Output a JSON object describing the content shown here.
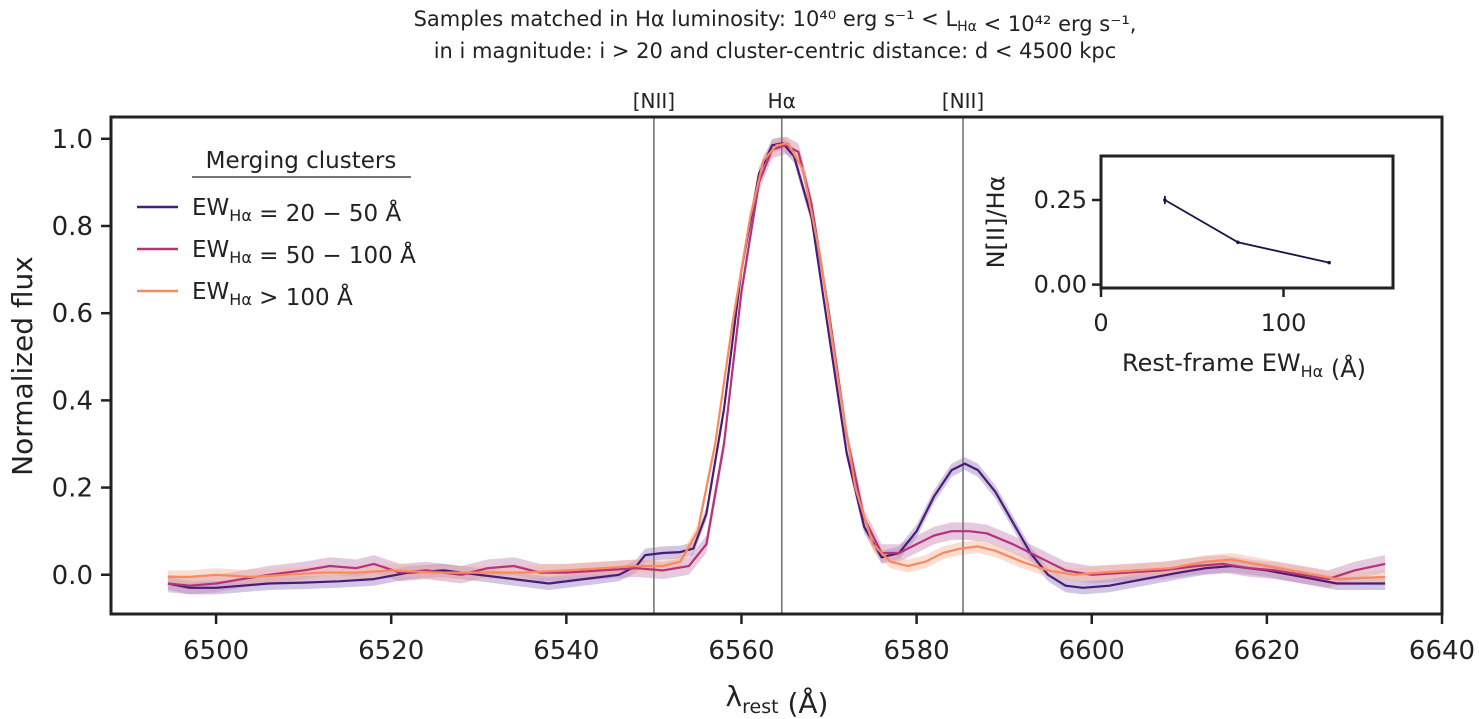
{
  "chart_data": [
    {
      "type": "line",
      "title_line1": "Samples matched in Hα luminosity: 10⁴⁰ erg s⁻¹ < L_Hα < 10⁴² erg s⁻¹,",
      "title_line2": "in i magnitude: i > 20 and cluster-centric distance: d < 4500 kpc",
      "xlabel": "λ_rest (Å)",
      "ylabel": "Normalized flux",
      "xlim": [
        6488,
        6640
      ],
      "ylim": [
        -0.09,
        1.05
      ],
      "xticks": [
        6500,
        6520,
        6540,
        6560,
        6580,
        6600,
        6620,
        6640
      ],
      "yticks": [
        0.0,
        0.2,
        0.4,
        0.6,
        0.8,
        1.0
      ],
      "grid": false,
      "legend_title": "Merging clusters",
      "legend_position": "top-left",
      "line_labels": [
        {
          "label": "[NII]",
          "x": 6550.0
        },
        {
          "label": "Hα",
          "x": 6564.6
        },
        {
          "label": "[NII]",
          "x": 6585.3
        }
      ],
      "series": [
        {
          "name": "EW_Hα = 20 − 50 Å",
          "color": "#4b1b78",
          "band_color": "#9a82c2",
          "x": [
            6494.5,
            6497,
            6500,
            6503,
            6506,
            6510,
            6514,
            6518,
            6522,
            6526,
            6530,
            6534,
            6538,
            6542,
            6546,
            6548,
            6549,
            6551,
            6553,
            6554.5,
            6556,
            6558,
            6560,
            6562,
            6563.5,
            6564.7,
            6566,
            6568,
            6570,
            6572,
            6574,
            6576,
            6578,
            6580,
            6582,
            6584,
            6585.5,
            6587,
            6589,
            6591,
            6593,
            6595,
            6597,
            6599,
            6602,
            6606,
            6610,
            6613,
            6616,
            6620,
            6624,
            6628,
            6633.5
          ],
          "y": [
            -0.02,
            -0.03,
            -0.03,
            -0.025,
            -0.02,
            -0.018,
            -0.015,
            -0.01,
            0.005,
            0.01,
            0.0,
            -0.01,
            -0.02,
            -0.01,
            0.0,
            0.02,
            0.045,
            0.05,
            0.052,
            0.06,
            0.14,
            0.38,
            0.7,
            0.92,
            0.985,
            0.99,
            0.96,
            0.82,
            0.55,
            0.28,
            0.11,
            0.04,
            0.05,
            0.1,
            0.18,
            0.24,
            0.255,
            0.24,
            0.19,
            0.12,
            0.05,
            0.0,
            -0.025,
            -0.03,
            -0.025,
            -0.01,
            0.005,
            0.015,
            0.02,
            0.01,
            -0.005,
            -0.02,
            -0.02
          ],
          "band": 0.015
        },
        {
          "name": "EW_Hα = 50 − 100 Å",
          "color": "#b8327a",
          "band_color": "#c58ab8",
          "x": [
            6494.5,
            6497,
            6500,
            6503,
            6506,
            6510,
            6513,
            6516,
            6518,
            6521,
            6524,
            6528,
            6531,
            6534,
            6537,
            6540,
            6544,
            6548,
            6551,
            6554,
            6556,
            6558,
            6560,
            6562,
            6563.5,
            6565,
            6566.5,
            6568,
            6570,
            6572,
            6574,
            6576,
            6578,
            6580,
            6582,
            6584,
            6586,
            6588,
            6591,
            6594,
            6597,
            6600,
            6604,
            6608,
            6612,
            6615,
            6618,
            6621,
            6624,
            6627,
            6630,
            6633.5
          ],
          "y": [
            -0.02,
            -0.025,
            -0.02,
            -0.01,
            0.0,
            0.01,
            0.02,
            0.015,
            0.025,
            0.005,
            0.01,
            0.0,
            0.015,
            0.02,
            0.005,
            0.005,
            0.01,
            0.015,
            0.01,
            0.02,
            0.07,
            0.3,
            0.65,
            0.9,
            0.975,
            0.985,
            0.97,
            0.85,
            0.6,
            0.32,
            0.13,
            0.05,
            0.05,
            0.07,
            0.09,
            0.1,
            0.1,
            0.095,
            0.07,
            0.04,
            0.01,
            0.0,
            0.005,
            0.01,
            0.02,
            0.025,
            0.015,
            0.01,
            0.0,
            -0.01,
            0.01,
            0.025
          ],
          "band": 0.02
        },
        {
          "name": "EW_Hα > 100 Å",
          "color": "#f88a5e",
          "band_color": "#f6b59c",
          "x": [
            6494.5,
            6497,
            6500,
            6504,
            6508,
            6512,
            6516,
            6520,
            6525,
            6530,
            6535,
            6540,
            6544,
            6548,
            6551,
            6553,
            6555,
            6557,
            6559,
            6561,
            6562.5,
            6564,
            6565.3,
            6567,
            6569,
            6571,
            6573,
            6575,
            6577,
            6579,
            6581,
            6583,
            6585,
            6587,
            6589,
            6592,
            6595,
            6598,
            6601,
            6605,
            6609,
            6613,
            6616,
            6620,
            6624,
            6628,
            6633.5
          ],
          "y": [
            -0.005,
            -0.005,
            0.0,
            -0.005,
            0.0,
            0.005,
            0.005,
            0.01,
            0.005,
            0.005,
            0.005,
            0.01,
            0.015,
            0.02,
            0.02,
            0.03,
            0.1,
            0.3,
            0.58,
            0.82,
            0.95,
            0.985,
            0.99,
            0.93,
            0.73,
            0.45,
            0.2,
            0.07,
            0.03,
            0.02,
            0.03,
            0.05,
            0.06,
            0.065,
            0.055,
            0.03,
            0.01,
            0.0,
            0.005,
            0.01,
            0.015,
            0.03,
            0.035,
            0.02,
            0.005,
            -0.01,
            -0.005
          ],
          "band": 0.015
        }
      ]
    },
    {
      "type": "line",
      "inset": true,
      "xlabel": "Rest-frame EW_Hα (Å)",
      "ylabel": "N[II]/Hα",
      "xlim": [
        0,
        160
      ],
      "ylim": [
        -0.01,
        0.38
      ],
      "xticks": [
        0,
        100
      ],
      "yticks": [
        0.0,
        0.25
      ],
      "grid": false,
      "series": [
        {
          "color": "#1a1446",
          "x": [
            35,
            75,
            125
          ],
          "y": [
            0.25,
            0.125,
            0.065
          ],
          "yerr": [
            0.012,
            0.004,
            0.003
          ]
        }
      ]
    }
  ]
}
